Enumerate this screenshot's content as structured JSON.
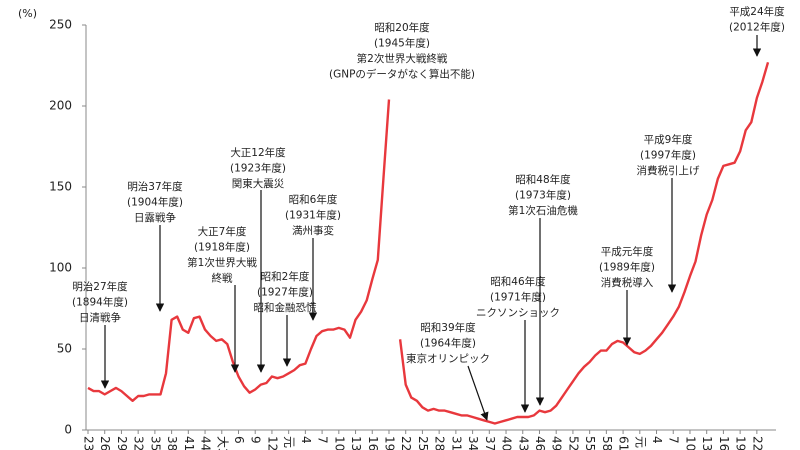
{
  "chart_data": {
    "type": "line",
    "ylabel": "(%)",
    "x": [
      1890,
      1891,
      1892,
      1893,
      1894,
      1895,
      1896,
      1897,
      1898,
      1899,
      1900,
      1901,
      1902,
      1903,
      1904,
      1905,
      1906,
      1907,
      1908,
      1909,
      1910,
      1911,
      1912,
      1913,
      1914,
      1915,
      1916,
      1917,
      1918,
      1919,
      1920,
      1921,
      1922,
      1923,
      1924,
      1925,
      1926,
      1927,
      1928,
      1929,
      1930,
      1931,
      1932,
      1933,
      1934,
      1935,
      1936,
      1937,
      1938,
      1939,
      1940,
      1941,
      1942,
      1943,
      1944,
      1945,
      1946,
      1947,
      1948,
      1949,
      1950,
      1951,
      1952,
      1953,
      1954,
      1955,
      1956,
      1957,
      1958,
      1959,
      1960,
      1961,
      1962,
      1963,
      1964,
      1965,
      1966,
      1967,
      1968,
      1969,
      1970,
      1971,
      1972,
      1973,
      1974,
      1975,
      1976,
      1977,
      1978,
      1979,
      1980,
      1981,
      1982,
      1983,
      1984,
      1985,
      1986,
      1987,
      1988,
      1989,
      1990,
      1991,
      1992,
      1993,
      1994,
      1995,
      1996,
      1997,
      1998,
      1999,
      2000,
      2001,
      2002,
      2003,
      2004,
      2005,
      2006,
      2007,
      2008,
      2009,
      2010,
      2011,
      2012
    ],
    "series": [
      {
        "color": "#e8383d",
        "values": [
          26,
          24,
          24,
          22,
          24,
          26,
          24,
          21,
          18,
          21,
          21,
          22,
          22,
          22,
          35,
          68,
          70,
          62,
          60,
          69,
          70,
          62,
          58,
          55,
          56,
          53,
          42,
          33,
          27,
          23,
          25,
          28,
          29,
          33,
          32,
          33,
          35,
          37,
          40,
          41,
          50,
          58,
          61,
          62,
          62,
          63,
          62,
          57,
          68,
          73,
          80,
          93,
          105,
          155,
          204,
          null,
          56,
          28,
          20,
          18,
          14,
          12,
          13,
          12,
          12,
          11,
          10,
          9,
          9,
          8,
          7,
          6,
          5,
          4,
          5,
          6,
          7,
          8,
          8,
          8,
          9,
          12,
          11,
          12,
          15,
          20,
          25,
          30,
          35,
          39,
          42,
          46,
          49,
          49,
          53,
          55,
          54,
          51,
          48,
          47,
          49,
          52,
          56,
          60,
          65,
          70,
          76,
          85,
          95,
          104,
          120,
          133,
          142,
          155,
          163,
          164,
          165,
          172,
          185,
          190,
          205,
          215,
          227
        ]
      }
    ],
    "xlim": [
      1890,
      2012
    ],
    "xticks": [
      {
        "value": 1890,
        "label": "23"
      },
      {
        "value": 1893,
        "label": "26"
      },
      {
        "value": 1896,
        "label": "29"
      },
      {
        "value": 1899,
        "label": "32"
      },
      {
        "value": 1902,
        "label": "35"
      },
      {
        "value": 1905,
        "label": "38"
      },
      {
        "value": 1908,
        "label": "41"
      },
      {
        "value": 1911,
        "label": "44"
      },
      {
        "value": 1914,
        "label": "大3"
      },
      {
        "value": 1917,
        "label": "6"
      },
      {
        "value": 1920,
        "label": "9"
      },
      {
        "value": 1923,
        "label": "12"
      },
      {
        "value": 1926,
        "label": "元"
      },
      {
        "value": 1929,
        "label": "4"
      },
      {
        "value": 1932,
        "label": "7"
      },
      {
        "value": 1935,
        "label": "10"
      },
      {
        "value": 1938,
        "label": "13"
      },
      {
        "value": 1941,
        "label": "16"
      },
      {
        "value": 1944,
        "label": "19"
      },
      {
        "value": 1947,
        "label": "22"
      },
      {
        "value": 1950,
        "label": "25"
      },
      {
        "value": 1953,
        "label": "28"
      },
      {
        "value": 1956,
        "label": "31"
      },
      {
        "value": 1959,
        "label": "34"
      },
      {
        "value": 1962,
        "label": "37"
      },
      {
        "value": 1965,
        "label": "40"
      },
      {
        "value": 1968,
        "label": "43"
      },
      {
        "value": 1971,
        "label": "46"
      },
      {
        "value": 1974,
        "label": "49"
      },
      {
        "value": 1977,
        "label": "52"
      },
      {
        "value": 1980,
        "label": "55"
      },
      {
        "value": 1983,
        "label": "58"
      },
      {
        "value": 1986,
        "label": "61"
      },
      {
        "value": 1989,
        "label": "元"
      },
      {
        "value": 1992,
        "label": "4"
      },
      {
        "value": 1995,
        "label": "7"
      },
      {
        "value": 1998,
        "label": "10"
      },
      {
        "value": 2001,
        "label": "13"
      },
      {
        "value": 2004,
        "label": "16"
      },
      {
        "value": 2007,
        "label": "19"
      },
      {
        "value": 2010,
        "label": "22"
      }
    ],
    "ylim": [
      0,
      250
    ],
    "yticks": [
      0,
      50,
      100,
      150,
      200,
      250
    ],
    "annotations": [
      [
        "明治27年度",
        "(1894年度)",
        "日清戦争"
      ],
      [
        "明治37年度",
        "(1904年度)",
        "日露戦争"
      ],
      [
        "大正7年度",
        "(1918年度)",
        "第1次世界大戦",
        "終戦"
      ],
      [
        "大正12年度",
        "(1923年度)",
        "関東大震災"
      ],
      [
        "昭和2年度",
        "(1927年度)",
        "昭和金融恐慌"
      ],
      [
        "昭和6年度",
        "(1931年度)",
        "満州事変"
      ],
      [
        "昭和20年度",
        "(1945年度)",
        "第2次世界大戦終戦",
        "(GNPのデータがなく算出不能)"
      ],
      [
        "昭和39年度",
        "(1964年度)",
        "東京オリンピック"
      ],
      [
        "昭和46年度",
        "(1971年度)",
        "ニクソンショック"
      ],
      [
        "昭和48年度",
        "(1973年度)",
        "第1次石油危機"
      ],
      [
        "平成元年度",
        "(1989年度)",
        "消費税導入"
      ],
      [
        "平成9年度",
        "(1997年度)",
        "消費税引上げ"
      ],
      [
        "平成24年度",
        "(2012年度)"
      ]
    ]
  }
}
